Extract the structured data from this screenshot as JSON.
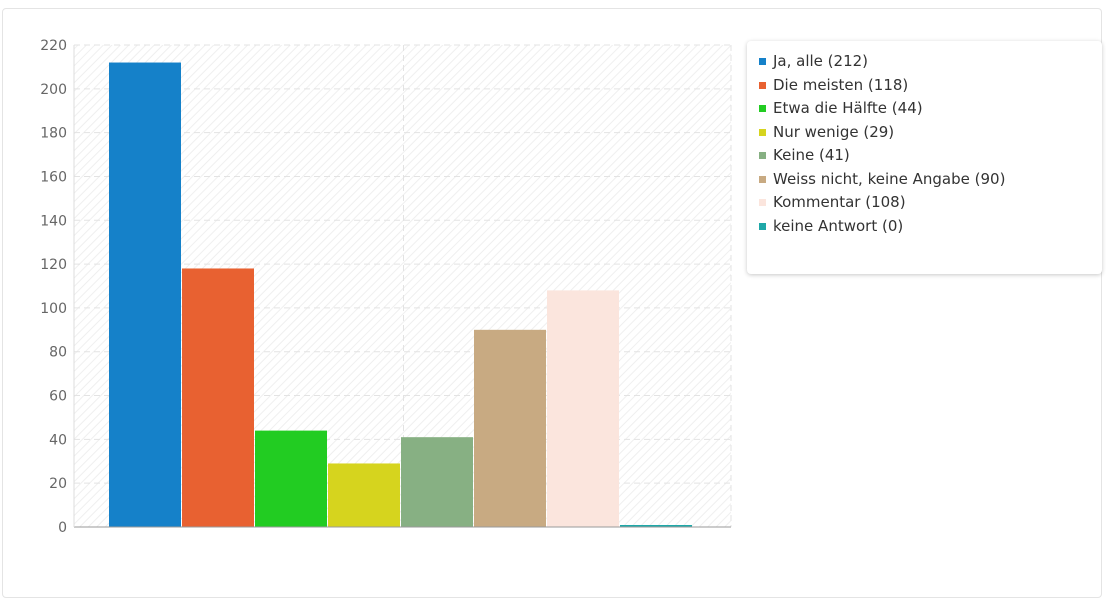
{
  "chart_data": {
    "type": "bar",
    "categories": [
      "Ja, alle",
      "Die meisten",
      "Etwa die Hälfte",
      "Nur wenige",
      "Keine",
      "Weiss nicht, keine Angabe",
      "Kommentar",
      "keine Antwort"
    ],
    "values": [
      212,
      118,
      44,
      29,
      41,
      90,
      108,
      0
    ],
    "colors": [
      "#1581c9",
      "#e86131",
      "#22cc22",
      "#d6d41e",
      "#87b083",
      "#c8aa82",
      "#fbe5dd",
      "#1fa8a8"
    ],
    "ylim": [
      0,
      220
    ],
    "yticks": [
      0,
      20,
      40,
      60,
      80,
      100,
      120,
      140,
      160,
      180,
      200,
      220
    ],
    "grid": true,
    "legend_position": "top-right",
    "legend": [
      "Ja, alle (212)",
      "Die meisten (118)",
      "Etwa die Hälfte (44)",
      "Nur wenige (29)",
      "Keine (41)",
      "Weiss nicht, keine Angabe (90)",
      "Kommentar (108)",
      "keine Antwort (0)"
    ]
  }
}
